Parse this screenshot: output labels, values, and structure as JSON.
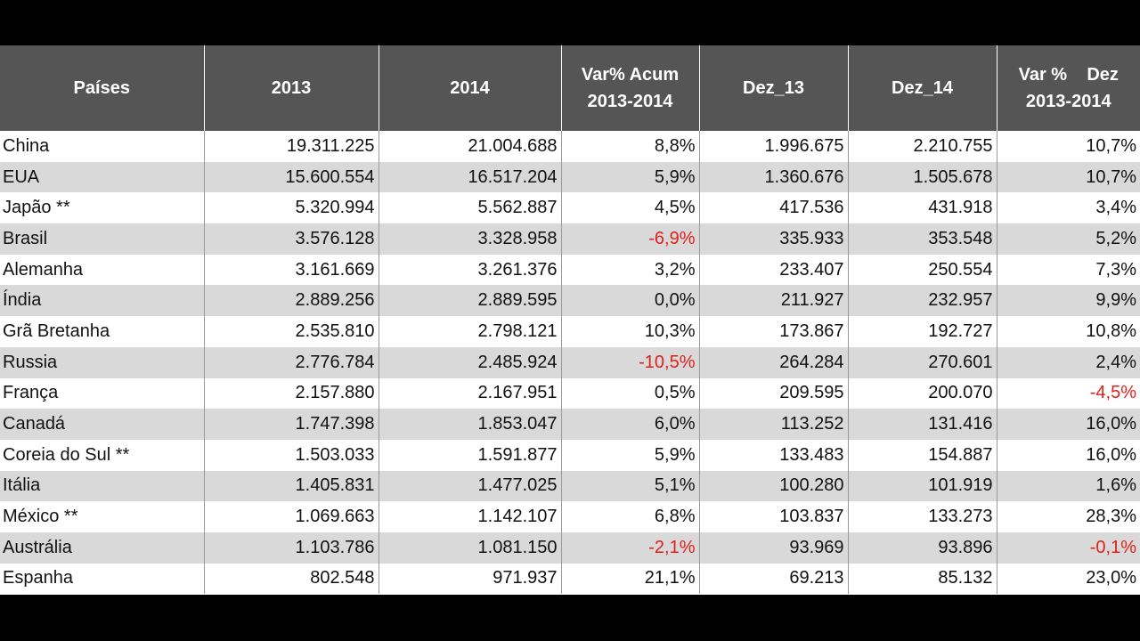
{
  "header": {
    "col0": "Países",
    "col1": "2013",
    "col2": "2014",
    "col3_l1": "Var% Acum",
    "col3_l2": "2013-2014",
    "col4": "Dez_13",
    "col5": "Dez_14",
    "col6_l1": "Var %    Dez",
    "col6_l2": "2013-2014"
  },
  "colors": {
    "header_bg": "#555555",
    "stripe": "#d9d9d9",
    "negative": "#e0201b"
  },
  "rows": [
    {
      "pais": "China",
      "y2013": "19.311.225",
      "y2014": "21.004.688",
      "var_acum": "8,8%",
      "dez13": "1.996.675",
      "dez14": "2.210.755",
      "var_dez": "10,7%"
    },
    {
      "pais": "EUA",
      "y2013": "15.600.554",
      "y2014": "16.517.204",
      "var_acum": "5,9%",
      "dez13": "1.360.676",
      "dez14": "1.505.678",
      "var_dez": "10,7%"
    },
    {
      "pais": "Japão **",
      "y2013": "5.320.994",
      "y2014": "5.562.887",
      "var_acum": "4,5%",
      "dez13": "417.536",
      "dez14": "431.918",
      "var_dez": "3,4%"
    },
    {
      "pais": "Brasil",
      "y2013": "3.576.128",
      "y2014": "3.328.958",
      "var_acum": "-6,9%",
      "dez13": "335.933",
      "dez14": "353.548",
      "var_dez": "5,2%"
    },
    {
      "pais": "Alemanha",
      "y2013": "3.161.669",
      "y2014": "3.261.376",
      "var_acum": "3,2%",
      "dez13": "233.407",
      "dez14": "250.554",
      "var_dez": "7,3%"
    },
    {
      "pais": "Índia",
      "y2013": "2.889.256",
      "y2014": "2.889.595",
      "var_acum": "0,0%",
      "dez13": "211.927",
      "dez14": "232.957",
      "var_dez": "9,9%"
    },
    {
      "pais": "Grã Bretanha",
      "y2013": "2.535.810",
      "y2014": "2.798.121",
      "var_acum": "10,3%",
      "dez13": "173.867",
      "dez14": "192.727",
      "var_dez": "10,8%"
    },
    {
      "pais": "Russia",
      "y2013": "2.776.784",
      "y2014": "2.485.924",
      "var_acum": "-10,5%",
      "dez13": "264.284",
      "dez14": "270.601",
      "var_dez": "2,4%"
    },
    {
      "pais": "França",
      "y2013": "2.157.880",
      "y2014": "2.167.951",
      "var_acum": "0,5%",
      "dez13": "209.595",
      "dez14": "200.070",
      "var_dez": "-4,5%"
    },
    {
      "pais": "Canadá",
      "y2013": "1.747.398",
      "y2014": "1.853.047",
      "var_acum": "6,0%",
      "dez13": "113.252",
      "dez14": "131.416",
      "var_dez": "16,0%"
    },
    {
      "pais": "Coreia do Sul **",
      "y2013": "1.503.033",
      "y2014": "1.591.877",
      "var_acum": "5,9%",
      "dez13": "133.483",
      "dez14": "154.887",
      "var_dez": "16,0%"
    },
    {
      "pais": "Itália",
      "y2013": "1.405.831",
      "y2014": "1.477.025",
      "var_acum": "5,1%",
      "dez13": "100.280",
      "dez14": "101.919",
      "var_dez": "1,6%"
    },
    {
      "pais": "México **",
      "y2013": "1.069.663",
      "y2014": "1.142.107",
      "var_acum": "6,8%",
      "dez13": "103.837",
      "dez14": "133.273",
      "var_dez": "28,3%"
    },
    {
      "pais": "Austrália",
      "y2013": "1.103.786",
      "y2014": "1.081.150",
      "var_acum": "-2,1%",
      "dez13": "93.969",
      "dez14": "93.896",
      "var_dez": "-0,1%"
    },
    {
      "pais": "Espanha",
      "y2013": "802.548",
      "y2014": "971.937",
      "var_acum": "21,1%",
      "dez13": "69.213",
      "dez14": "85.132",
      "var_dez": "23,0%"
    }
  ]
}
